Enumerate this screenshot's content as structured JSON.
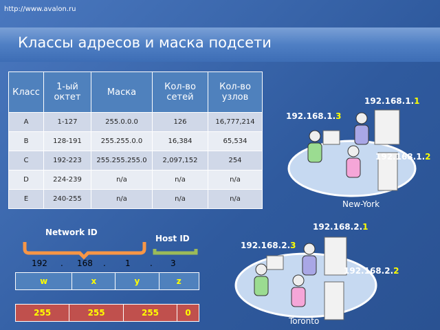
{
  "url": "http://www.avalon.ru",
  "title": "Классы адресов и маска подсети",
  "table": {
    "header": [
      "Класс",
      "1-ый октет",
      "Маска",
      "Кол-во сетей",
      "Кол-во узлов"
    ],
    "rows": [
      [
        "A",
        "1-127",
        "255.0.0.0",
        "126",
        "16,777,214"
      ],
      [
        "B",
        "128-191",
        "255.255.0.0",
        "16,384",
        "65,534"
      ],
      [
        "C",
        "192-223",
        "255.255.255.0",
        "2,097,152",
        "254"
      ],
      [
        "D",
        "224-239",
        "n/a",
        "n/a",
        "n/a"
      ],
      [
        "E",
        "240-255",
        "n/a",
        "n/a",
        "n/a"
      ]
    ]
  },
  "networks": [
    {
      "name": "New-York",
      "hosts": [
        {
          "network": "192.168.1.",
          "host": "1"
        },
        {
          "network": "192.168.1.",
          "host": "3"
        },
        {
          "network": "192.168.1.",
          "host": "2"
        }
      ]
    },
    {
      "name": "Toronto",
      "hosts": [
        {
          "network": "192.168.2.",
          "host": "1"
        },
        {
          "network": "192.168.2.",
          "host": "3"
        },
        {
          "network": "192.168.2.",
          "host": "2"
        }
      ]
    }
  ],
  "address": {
    "network_label": "Network ID",
    "host_label": "Host ID",
    "parts": [
      "192",
      ".",
      "168",
      ".",
      "1",
      ".",
      "3"
    ],
    "letters": [
      "w",
      "x",
      "y",
      "z"
    ],
    "mask": [
      "255",
      "255",
      "255",
      "0"
    ]
  }
}
